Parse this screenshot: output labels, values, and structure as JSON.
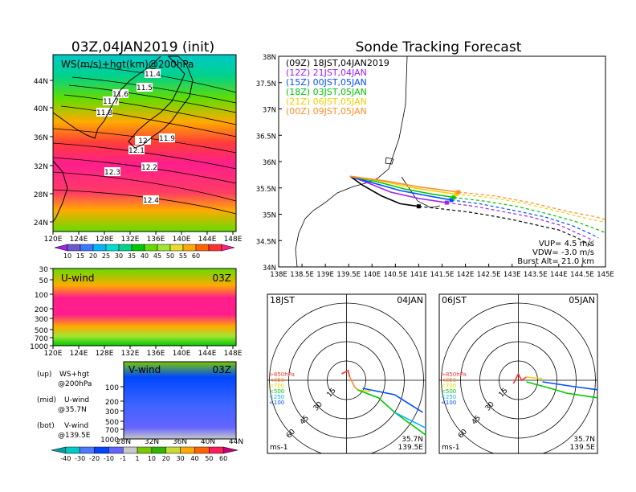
{
  "left_title": "03Z,04JAN2019 (init)",
  "right_title": "Sonde Tracking Forecast",
  "map_panel": {
    "label": "WS(m/s)+hgt(km)@200hPa",
    "lat_ticks": [
      "44N",
      "40N",
      "36N",
      "32N",
      "28N",
      "24N"
    ],
    "lon_ticks": [
      "120E",
      "124E",
      "128E",
      "132E",
      "136E",
      "140E",
      "144E",
      "148E"
    ],
    "contour_labels": [
      "11.4",
      "11.5",
      "11.6",
      "11.7",
      "11.8",
      "12",
      "11.9",
      "12.1",
      "12.2",
      "12.3",
      "12.4"
    ]
  },
  "colorbar_top": {
    "labels": [
      "10",
      "15",
      "20",
      "25",
      "30",
      "35",
      "40",
      "45",
      "50",
      "55",
      "60"
    ],
    "colors": [
      "#a020f0",
      "#6a5acd",
      "#3c78ff",
      "#00b4ff",
      "#00dcd2",
      "#00d28c",
      "#00c800",
      "#64dc00",
      "#a0e632",
      "#e6dc32",
      "#ffaa00",
      "#ff6400",
      "#ff3232",
      "#ff1e8c"
    ]
  },
  "u_panel": {
    "label": "U-wind",
    "time": "03Z",
    "p_ticks": [
      "30",
      "50",
      "100",
      "200",
      "300",
      "500",
      "700",
      "1000"
    ],
    "lon_ticks": [
      "120E",
      "124E",
      "128E",
      "132E",
      "136E",
      "140E",
      "144E",
      "148E"
    ]
  },
  "v_panel": {
    "label": "V-wind",
    "time": "03Z",
    "p_ticks": [
      "100",
      "200",
      "300",
      "500",
      "700",
      "1000"
    ],
    "lat_ticks": [
      "28N",
      "32N",
      "36N",
      "40N",
      "44N"
    ]
  },
  "legend_notes": [
    {
      "tag": "(up)",
      "l1": "WS+hgt",
      "l2": "@200hPa"
    },
    {
      "tag": "(mid)",
      "l1": "U-wind",
      "l2": "@35.7N"
    },
    {
      "tag": "(bot)",
      "l1": "V-wind",
      "l2": "@139.5E"
    }
  ],
  "colorbar_bottom": {
    "labels": [
      "-40",
      "-30",
      "-20",
      "-10",
      "-1",
      "1",
      "10",
      "20",
      "30",
      "40",
      "50",
      "60"
    ],
    "colors": [
      "#00a0a0",
      "#00c8c8",
      "#5078ff",
      "#0046ff",
      "#6464ff",
      "#c8c8c8",
      "#78c800",
      "#32b400",
      "#c8dc32",
      "#ffaa00",
      "#ff6400",
      "#ff1e5a",
      "#c80078"
    ]
  },
  "chart_data": {
    "type": "line",
    "title": "Sonde Tracking Forecast",
    "xlim": [
      138,
      145
    ],
    "ylim": [
      34,
      38
    ],
    "x_ticks": [
      "138E",
      "138.5E",
      "139E",
      "139.5E",
      "140E",
      "140.5E",
      "141E",
      "141.5E",
      "142E",
      "142.5E",
      "143E",
      "143.5E",
      "144E",
      "144.5E",
      "145E"
    ],
    "y_ticks": [
      "34N",
      "34.5N",
      "35N",
      "35.5N",
      "36N",
      "36.5N",
      "37N",
      "37.5N",
      "38N"
    ],
    "series": [
      {
        "name": "(09Z) 18JST,04JAN2019",
        "color": "#000000",
        "points": [
          [
            139.53,
            35.72
          ],
          [
            139.8,
            35.55
          ],
          [
            140.2,
            35.35
          ],
          [
            140.6,
            35.2
          ],
          [
            141.0,
            35.15
          ],
          [
            141.5,
            35.1
          ],
          [
            142.0,
            35.05
          ],
          [
            142.5,
            34.98
          ],
          [
            143.0,
            34.9
          ],
          [
            143.5,
            34.8
          ],
          [
            144.0,
            34.7
          ],
          [
            144.4,
            34.55
          ],
          [
            144.7,
            34.4
          ]
        ]
      },
      {
        "name": "(12Z) 21JST,04JAN",
        "color": "#a020f0",
        "points": [
          [
            139.53,
            35.72
          ],
          [
            139.9,
            35.6
          ],
          [
            140.4,
            35.42
          ],
          [
            141.0,
            35.3
          ],
          [
            141.6,
            35.22
          ],
          [
            142.2,
            35.15
          ],
          [
            142.8,
            35.05
          ],
          [
            143.4,
            34.95
          ],
          [
            144.0,
            34.8
          ],
          [
            144.5,
            34.6
          ],
          [
            144.75,
            34.5
          ]
        ]
      },
      {
        "name": "(15Z) 00JST,05JAN",
        "color": "#0050ff",
        "points": [
          [
            139.53,
            35.72
          ],
          [
            140.0,
            35.6
          ],
          [
            140.6,
            35.45
          ],
          [
            141.2,
            35.35
          ],
          [
            141.7,
            35.27
          ],
          [
            142.3,
            35.2
          ],
          [
            143.0,
            35.08
          ],
          [
            143.7,
            34.95
          ],
          [
            144.3,
            34.78
          ],
          [
            144.7,
            34.62
          ],
          [
            144.85,
            34.55
          ]
        ]
      },
      {
        "name": "(18Z) 03JST,05JAN",
        "color": "#00c800",
        "points": [
          [
            139.53,
            35.72
          ],
          [
            140.1,
            35.62
          ],
          [
            140.7,
            35.48
          ],
          [
            141.3,
            35.38
          ],
          [
            141.75,
            35.32
          ],
          [
            142.4,
            35.25
          ],
          [
            143.1,
            35.15
          ],
          [
            143.8,
            35.0
          ],
          [
            144.4,
            34.85
          ],
          [
            144.85,
            34.7
          ],
          [
            145.0,
            34.65
          ]
        ]
      },
      {
        "name": "(21Z) 06JST,05JAN",
        "color": "#f0d000",
        "points": [
          [
            139.53,
            35.72
          ],
          [
            140.2,
            35.63
          ],
          [
            140.9,
            35.5
          ],
          [
            141.5,
            35.42
          ],
          [
            141.8,
            35.38
          ],
          [
            142.5,
            35.32
          ],
          [
            143.2,
            35.22
          ],
          [
            144.0,
            35.05
          ],
          [
            144.7,
            34.9
          ],
          [
            145.0,
            34.85
          ]
        ]
      },
      {
        "name": "(00Z) 09JST,05JAN",
        "color": "#ff8c28",
        "points": [
          [
            139.53,
            35.72
          ],
          [
            140.3,
            35.63
          ],
          [
            141.0,
            35.52
          ],
          [
            141.6,
            35.45
          ],
          [
            141.85,
            35.42
          ],
          [
            142.6,
            35.35
          ],
          [
            143.4,
            35.22
          ],
          [
            144.2,
            35.05
          ],
          [
            144.8,
            34.95
          ],
          [
            145.0,
            34.9
          ]
        ]
      }
    ],
    "annotations": [
      "VUP= 4.5 m/s",
      "VDW= -3.0 m/s",
      "Burst Alt= 21.0 km"
    ]
  },
  "hodographs": [
    {
      "left_label": "18JST",
      "right_label": "04JAN",
      "loc1": "35.7N",
      "loc2": "139.5E",
      "unit": "ms-1",
      "ring_labels": [
        "15",
        "30",
        "45",
        "60"
      ],
      "levels": [
        ">850hPa",
        "<850",
        "<700",
        "<500",
        "<250",
        "<100"
      ],
      "level_colors": [
        "#ff3232",
        "#ff8c28",
        "#f0d000",
        "#00c800",
        "#00b4ff",
        "#0050ff"
      ]
    },
    {
      "left_label": "06JST",
      "right_label": "05JAN",
      "loc1": "35.7N",
      "loc2": "139.5E",
      "unit": "ms-1",
      "ring_labels": [
        "15",
        "30",
        "45",
        "60"
      ],
      "levels": [
        ">850hPa",
        "<850",
        "<700",
        "<500",
        "<250",
        "<100"
      ],
      "level_colors": [
        "#ff3232",
        "#ff8c28",
        "#f0d000",
        "#00c800",
        "#00b4ff",
        "#0050ff"
      ]
    }
  ]
}
